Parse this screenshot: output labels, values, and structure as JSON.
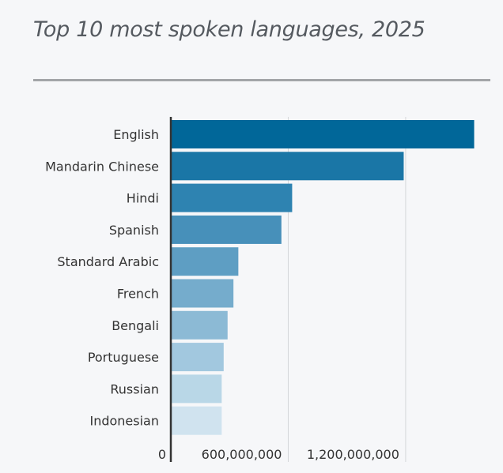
{
  "chart_data": {
    "type": "bar",
    "orientation": "horizontal",
    "title": "Top 10 most spoken languages, 2025",
    "categories": [
      "English",
      "Mandarin Chinese",
      "Hindi",
      "Spanish",
      "Standard Arabic",
      "French",
      "Bengali",
      "Portuguese",
      "Russian",
      "Indonesian"
    ],
    "values": [
      1550000000,
      1190000000,
      620000000,
      565000000,
      345000000,
      320000000,
      290000000,
      270000000,
      260000000,
      260000000
    ],
    "colors": [
      "#016799",
      "#1a76a6",
      "#2e83b1",
      "#4790ba",
      "#5e9ec3",
      "#75accc",
      "#8cbad5",
      "#a2c8df",
      "#b9d7e7",
      "#d0e3ef"
    ],
    "xticks": [
      0,
      600000000,
      1200000000
    ],
    "xtick_labels": [
      "0",
      "600,000,000",
      "1,200,000,000"
    ],
    "xlim": [
      0,
      1560000000
    ],
    "grid": true,
    "xlabel": "",
    "ylabel": ""
  }
}
